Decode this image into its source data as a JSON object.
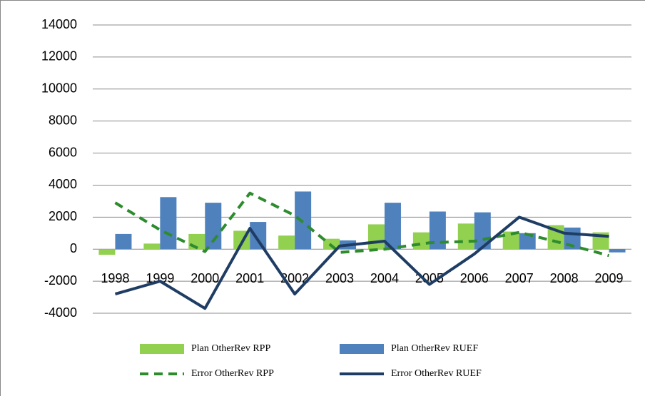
{
  "chart_data": {
    "type": "bar-line",
    "categories": [
      "1998",
      "1999",
      "2000",
      "2001",
      "2002",
      "2003",
      "2004",
      "2005",
      "2006",
      "2007",
      "2008",
      "2009"
    ],
    "series": [
      {
        "name": "Plan OtherRev RPP",
        "kind": "bar",
        "color": "#92d050",
        "values": [
          -350,
          350,
          950,
          1150,
          850,
          650,
          1550,
          1050,
          1600,
          1100,
          1500,
          1050
        ]
      },
      {
        "name": "Plan OtherRev RUEF",
        "kind": "bar",
        "color": "#4f81bd",
        "values": [
          950,
          3250,
          2900,
          1700,
          3600,
          550,
          2900,
          2350,
          2300,
          1000,
          1350,
          -200
        ]
      },
      {
        "name": "Error OtherRev RPP",
        "kind": "line",
        "dashed": true,
        "color": "#2e8b2e",
        "values": [
          2900,
          1200,
          -150,
          3500,
          2100,
          -200,
          0,
          400,
          500,
          1050,
          350,
          -400
        ]
      },
      {
        "name": "Error OtherRev RUEF",
        "kind": "line",
        "dashed": false,
        "color": "#1f3d64",
        "values": [
          -2800,
          -2000,
          -3700,
          1300,
          -2800,
          200,
          500,
          -2200,
          -300,
          2000,
          1000,
          800
        ]
      }
    ],
    "ylim": [
      -4000,
      14000
    ],
    "yticks": [
      -4000,
      -2000,
      0,
      2000,
      4000,
      6000,
      8000,
      10000,
      12000,
      14000
    ],
    "grid": true,
    "legend": "bottom"
  }
}
